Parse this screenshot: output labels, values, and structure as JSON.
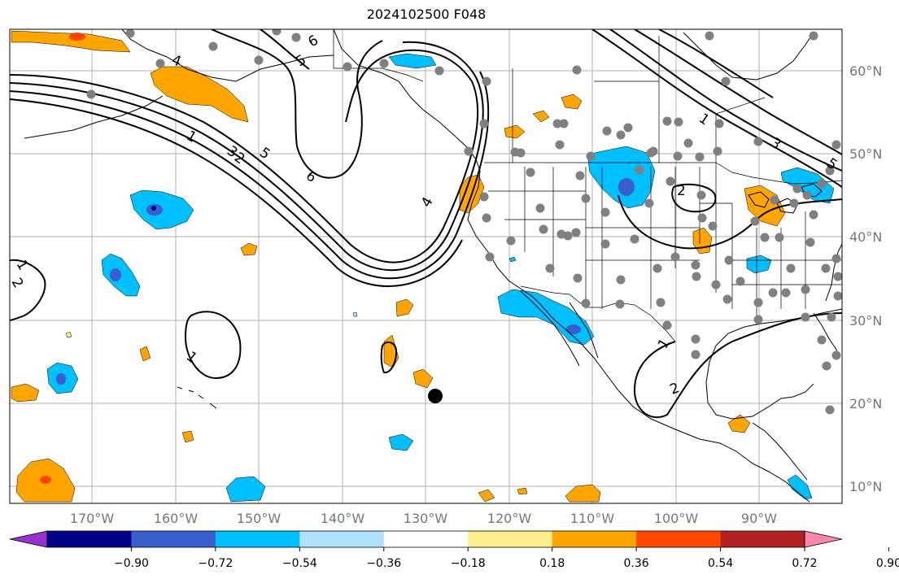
{
  "title": "2024102500 F048",
  "map": {
    "lon_labels": [
      "170°W",
      "160°W",
      "150°W",
      "140°W",
      "130°W",
      "120°W",
      "110°W",
      "100°W",
      "90°W"
    ],
    "lat_labels": [
      "60°N",
      "50°N",
      "40°N",
      "30°N",
      "20°N",
      "10°N"
    ],
    "contour_labels": [
      "1",
      "2",
      "3",
      "4",
      "5",
      "6"
    ],
    "colors": {
      "land_line": "#000000",
      "grid": "#b0b0b0",
      "station": "#808080",
      "contour": "#000000"
    }
  },
  "colorbar": {
    "colors": [
      "#9932CC",
      "#00008B",
      "#3A5FCD",
      "#00BFFF",
      "#B0E2FF",
      "#FFFFFF",
      "#FFEC8B",
      "#FFA500",
      "#FF4500",
      "#B22222",
      "#FF88AA"
    ],
    "tick_labels": [
      "−0.90",
      "−0.72",
      "−0.54",
      "−0.36",
      "−0.18",
      "0.18",
      "0.36",
      "0.54",
      "0.72",
      "0.90"
    ]
  },
  "marker": {
    "color": "#000000"
  }
}
